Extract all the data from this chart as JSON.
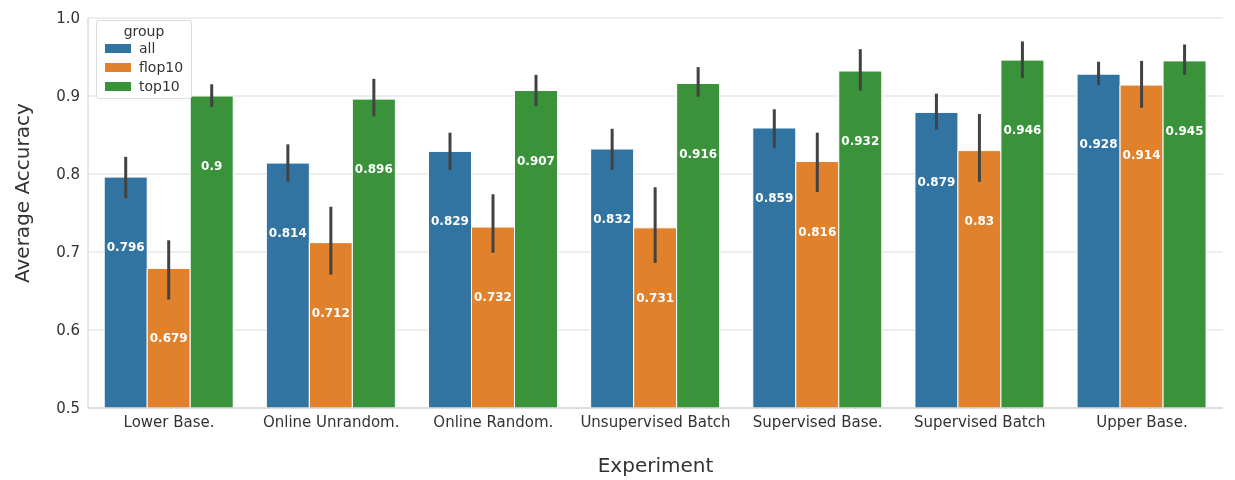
{
  "chart_data": {
    "type": "bar",
    "xlabel": "Experiment",
    "ylabel": "Average Accuracy",
    "legend_title": "group",
    "legend": "top left",
    "grid": "y",
    "data_labels": true,
    "categories": [
      "Lower Base.",
      "Online Unrandom.",
      "Online Random.",
      "Unsupervised Batch",
      "Supervised Base.",
      "Supervised Batch",
      "Upper Base."
    ],
    "ylim": [
      0.5,
      1.0
    ],
    "yticks": [
      0.5,
      0.6,
      0.7,
      0.8,
      0.9,
      {
        "value": 1.0,
        "label": "1.0"
      }
    ],
    "series": [
      {
        "name": "all",
        "color": "#3274a1",
        "values": [
          0.796,
          0.814,
          0.829,
          0.832,
          0.859,
          0.879,
          0.928
        ],
        "errors": [
          [
            0.769,
            0.822
          ],
          [
            0.79,
            0.838
          ],
          [
            0.805,
            0.853
          ],
          [
            0.805,
            0.858
          ],
          [
            0.833,
            0.883
          ],
          [
            0.857,
            0.903
          ],
          [
            0.914,
            0.944
          ]
        ]
      },
      {
        "name": "flop10",
        "color": "#e1812c",
        "values": [
          0.679,
          0.712,
          0.732,
          0.731,
          0.816,
          0.83,
          0.914
        ],
        "errors": [
          [
            0.639,
            0.715
          ],
          [
            0.671,
            0.758
          ],
          [
            0.699,
            0.774
          ],
          [
            0.686,
            0.783
          ],
          [
            0.777,
            0.853
          ],
          [
            0.79,
            0.877
          ],
          [
            0.885,
            0.945
          ]
        ]
      },
      {
        "name": "top10",
        "color": "#3a923a",
        "values": [
          0.9,
          0.896,
          0.907,
          0.916,
          0.932,
          0.946,
          0.945
        ],
        "errors": [
          [
            0.886,
            0.915
          ],
          [
            0.874,
            0.922
          ],
          [
            0.887,
            0.927
          ],
          [
            0.899,
            0.937
          ],
          [
            0.907,
            0.96
          ],
          [
            0.923,
            0.97
          ],
          [
            0.927,
            0.966
          ]
        ]
      }
    ]
  }
}
